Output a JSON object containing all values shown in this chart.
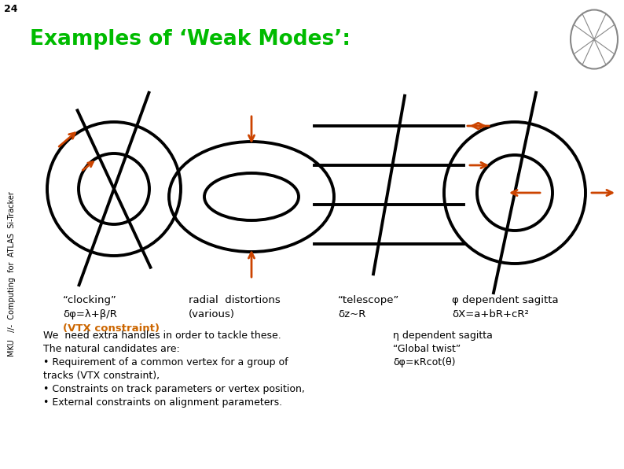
{
  "title": "Examples of ‘Weak Modes’:",
  "title_color": "#00bb00",
  "header_bg": "#aaaacc",
  "slide_num": "24",
  "content_bg": "#ffffff",
  "sidebar_color": "#aaaacc",
  "arrow_color": "#cc4400",
  "black": "#000000",
  "orange_vtx": "#cc6600",
  "label1_line1": "“clocking”",
  "label1_line2": "δφ=λ+β/R",
  "label1_line3": "(VTX constraint)",
  "label2_line1": "radial  distortions",
  "label2_line2": "(various)",
  "label3_line1": "“telescope”",
  "label3_line2": "δz~R",
  "label4_line1": "φ dependent sagitta",
  "label4_line2": "δX=a+bR+cR²",
  "text_block_lines": [
    "We  need extra handles in order to tackle these.",
    "The natural candidates are:",
    "• Requirement of a common vertex for a group of",
    "tracks (VTX constraint),",
    "• Constraints on track parameters or vertex position,",
    "• External constraints on alignment parameters."
  ],
  "text_block2_line1": "η dependent sagitta",
  "text_block2_line2": "“Global twist”",
  "text_block2_line3": "δφ=κRcot(θ)"
}
